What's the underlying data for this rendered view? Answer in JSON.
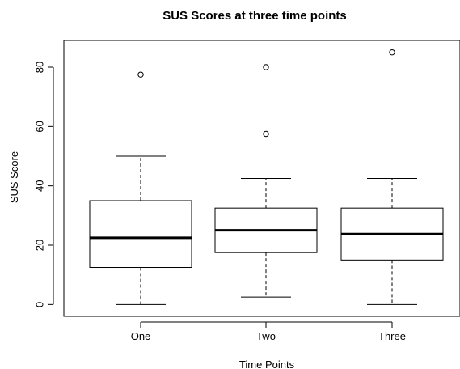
{
  "chart_data": {
    "type": "boxplot",
    "title": "SUS Scores at three time points",
    "xlabel": "Time Points",
    "ylabel": "SUS Score",
    "categories": [
      "One",
      "Two",
      "Three"
    ],
    "ylim": [
      -4,
      89
    ],
    "y_ticks": [
      0,
      20,
      40,
      60,
      80
    ],
    "boxes": [
      {
        "category": "One",
        "whisker_low": 0,
        "q1": 12.5,
        "median": 22.5,
        "q3": 35,
        "whisker_high": 50,
        "outliers": [
          77.5
        ]
      },
      {
        "category": "Two",
        "whisker_low": 2.5,
        "q1": 17.5,
        "median": 25,
        "q3": 32.5,
        "whisker_high": 42.5,
        "outliers": [
          57.5,
          80
        ]
      },
      {
        "category": "Three",
        "whisker_low": 0,
        "q1": 15,
        "median": 23.75,
        "q3": 32.5,
        "whisker_high": 42.5,
        "outliers": [
          85
        ]
      }
    ],
    "grid": false,
    "legend": "none"
  }
}
